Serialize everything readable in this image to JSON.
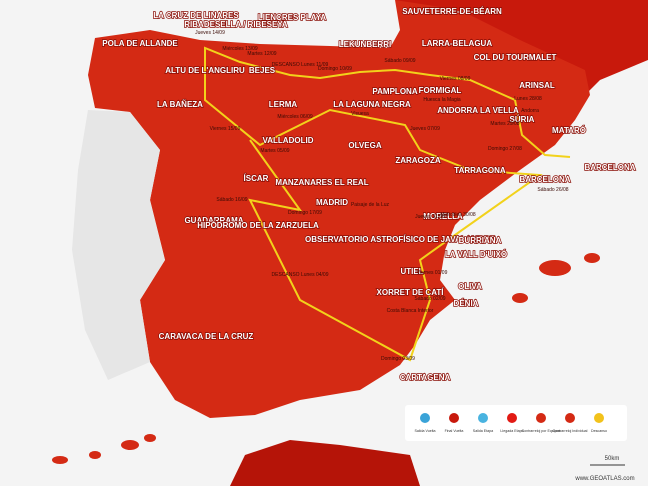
{
  "places": [
    "LA CRUZ DE LINARES",
    "RIBADESELLA / RIBESEYA",
    "LIENCRES PLAYA",
    "SAUVETERRE-DE-BÉARN",
    "POLA DE ALLANDE",
    "LEKUNBERRI",
    "LARRA-BELAGUA",
    "COL DU TOURMALET",
    "ALTU DE L'ANGLIRU",
    "BEJES",
    "PAMPLONA",
    "FORMIGAL",
    "ARINSAL",
    "ANDORRA LA VELLA",
    "LA BAÑEZA",
    "LERMA",
    "LA LAGUNA NEGRA",
    "SÚRIA",
    "MATARÓ",
    "BARCELONA",
    "VALLADOLID",
    "OLVEGA",
    "ZARAGOZA",
    "TARRAGONA",
    "BARCELONA",
    "ÍSCAR",
    "GUADARRAMA",
    "MANZANARES EL REAL",
    "MADRID",
    "MORELLA",
    "HIPÓDROMO DE LA ZARZUELA",
    "OBSERVATORIO ASTROFÍSICO DE JAVALAMBRE",
    "BURRIANA",
    "LA VALL D'UIXÓ",
    "UTIEL",
    "OLIVA",
    "XORRET DE CATÍ",
    "DÉNIA",
    "CARAVACA DE LA CRUZ",
    "CARTAGENA"
  ],
  "dates": [
    "Jueves 14/09",
    "Miércoles 13/09",
    "Martes 12/09",
    "DESCANSO Lunes 11/09",
    "Domingo 10/09",
    "Sábado 09/09",
    "Viernes 08/09",
    "Jueves 07/09",
    "Miércoles 06/09",
    "Martes 05/09",
    "Viernes 15/09",
    "Sábado 16/09",
    "Domingo 17/09",
    "DESCANSO Lunes 04/09",
    "Lunes 28/08",
    "Martes 29/08",
    "Domingo 27/08",
    "Sábado 26/08",
    "Jueves 31/08",
    "Miércoles 30/08",
    "Viernes 01/09",
    "Sábado 02/09",
    "Domingo 03/09"
  ],
  "notes": [
    "Andorra",
    "Huesca la Magia",
    "Visuesa",
    "Paisaje de la Luz",
    "Costa Blanca Interior"
  ],
  "legend": [
    "Salida Vuelta",
    "Final Vuelta",
    "Salida Etapa",
    "Llegada Etapa",
    "Contrarreloj por Equipos",
    "Contrarreloj Individual",
    "Descanso"
  ],
  "scale": "50km",
  "credit": "www.GEOATLAS.com"
}
